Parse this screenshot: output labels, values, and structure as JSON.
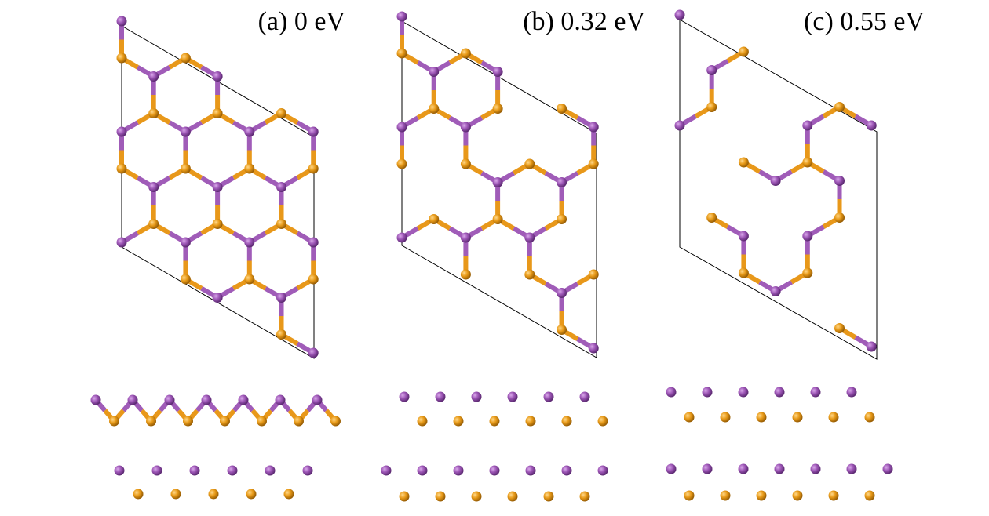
{
  "panels": [
    {
      "label": "(a) 0 eV"
    },
    {
      "label": "(b) 0.32 eV"
    },
    {
      "label": "(c) 0.55 eV"
    }
  ]
}
